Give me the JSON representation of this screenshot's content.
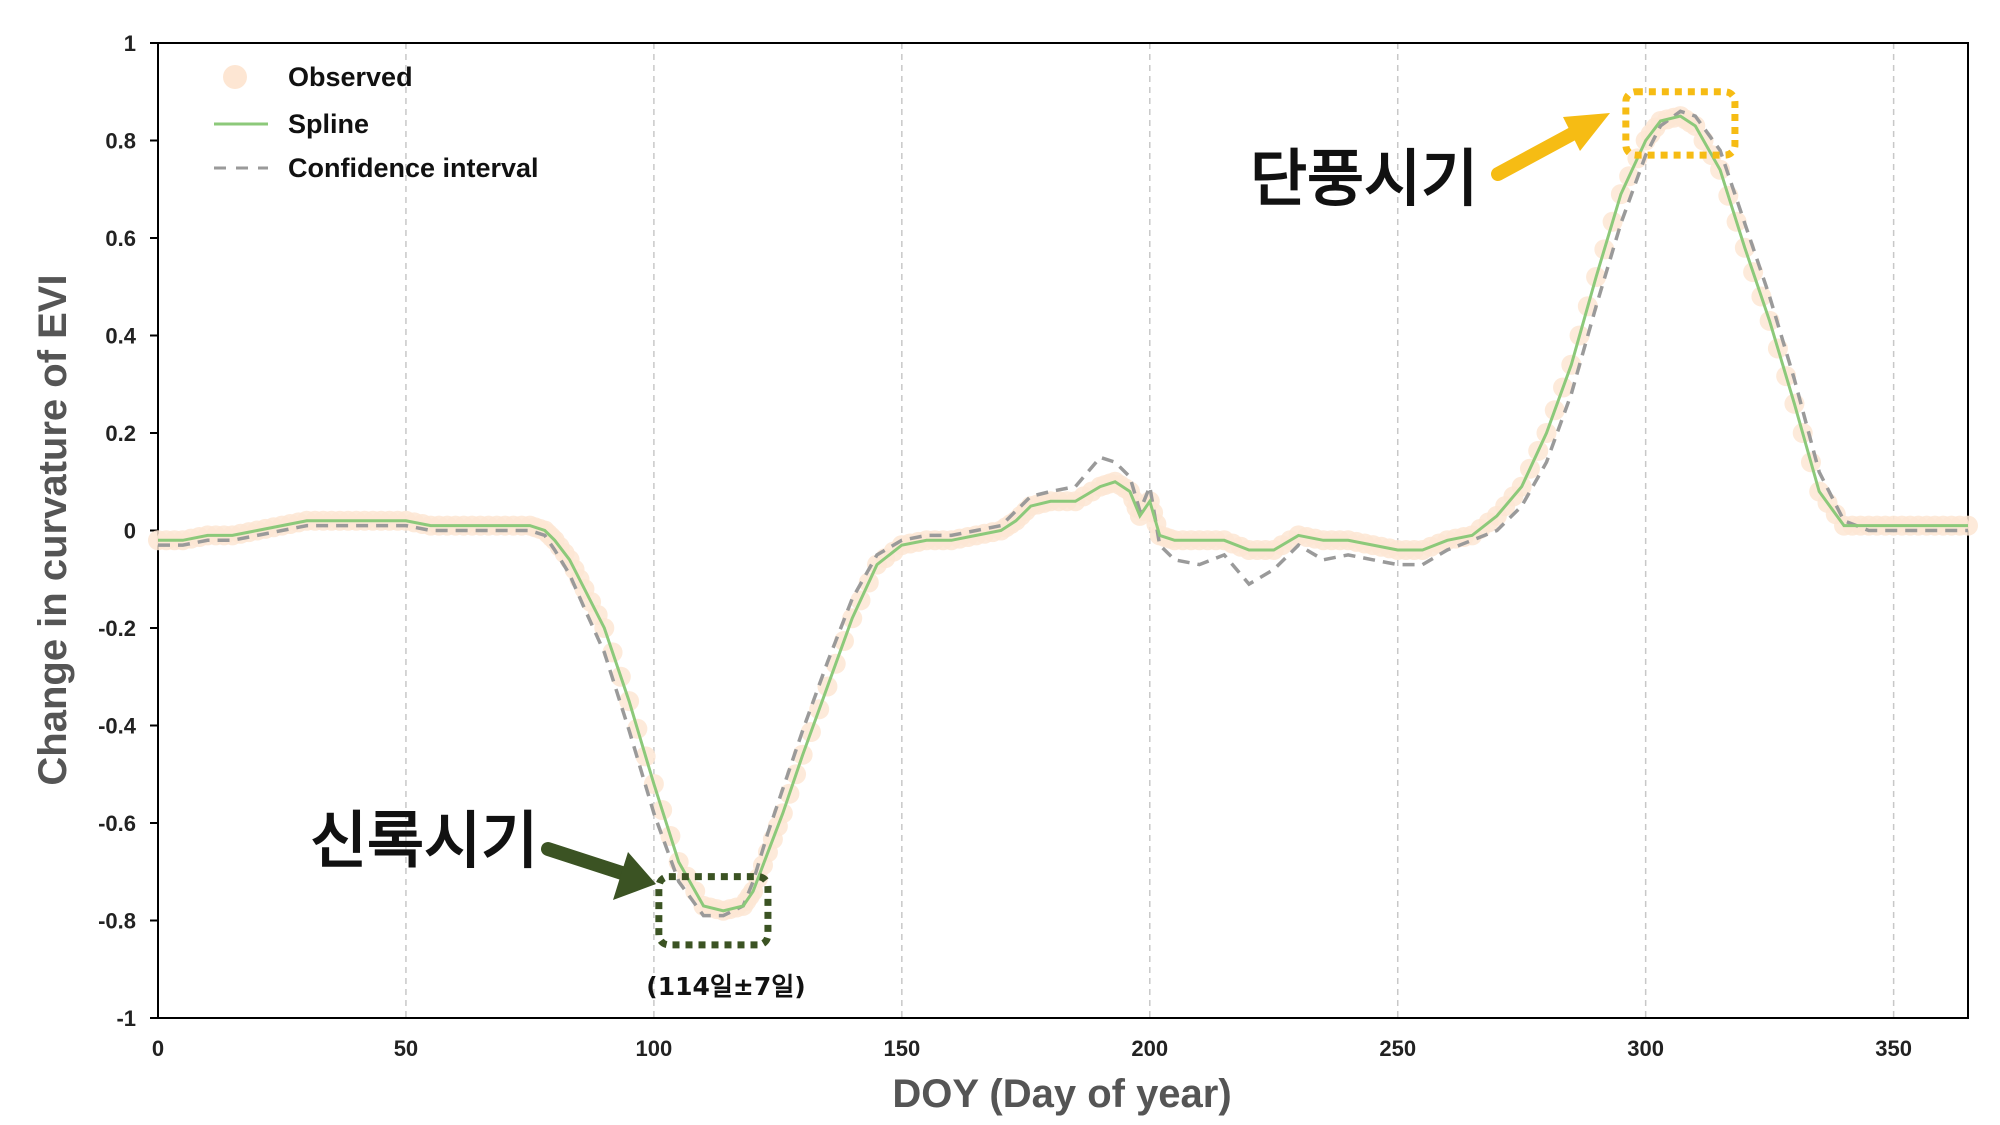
{
  "chart_data": {
    "type": "line",
    "xlabel": "DOY (Day of year)",
    "ylabel": "Change in curvature  of EVI",
    "xlim": [
      0,
      365
    ],
    "ylim": [
      -1,
      1
    ],
    "xticks": [
      0,
      50,
      100,
      150,
      200,
      250,
      300,
      350
    ],
    "yticks": [
      1,
      0.8,
      0.6,
      0.4,
      0.2,
      0,
      -0.2,
      -0.4,
      -0.6,
      -0.8,
      -1
    ],
    "ytick_labels": [
      "1",
      "0.8",
      "0.6",
      "0.4",
      "0.2",
      "0",
      "-0.2",
      "-0.4",
      "-0.6",
      "-0.8",
      "-1"
    ],
    "grid": "vertical dashed",
    "legend_position": "top-left",
    "legend": [
      "Observed",
      "Spline",
      "Confidence interval"
    ],
    "series": [
      {
        "name": "Spline",
        "color": "#8cc97a",
        "x": [
          0,
          5,
          10,
          15,
          20,
          25,
          30,
          35,
          40,
          45,
          50,
          55,
          60,
          65,
          70,
          75,
          78,
          80,
          83,
          86,
          90,
          95,
          100,
          105,
          110,
          114,
          118,
          120,
          123,
          126,
          130,
          135,
          140,
          145,
          150,
          155,
          160,
          165,
          170,
          173,
          176,
          180,
          185,
          190,
          193,
          196,
          198,
          200,
          202,
          205,
          210,
          215,
          220,
          225,
          230,
          235,
          240,
          245,
          250,
          255,
          260,
          265,
          270,
          275,
          280,
          285,
          290,
          295,
          300,
          303,
          307,
          310,
          315,
          320,
          325,
          330,
          335,
          340,
          345,
          350,
          355,
          360,
          365
        ],
        "y": [
          -0.02,
          -0.02,
          -0.01,
          -0.01,
          0.0,
          0.01,
          0.02,
          0.02,
          0.02,
          0.02,
          0.02,
          0.01,
          0.01,
          0.01,
          0.01,
          0.01,
          0.0,
          -0.02,
          -0.06,
          -0.12,
          -0.2,
          -0.35,
          -0.52,
          -0.68,
          -0.77,
          -0.78,
          -0.77,
          -0.74,
          -0.66,
          -0.58,
          -0.46,
          -0.32,
          -0.18,
          -0.07,
          -0.03,
          -0.02,
          -0.02,
          -0.01,
          0.0,
          0.02,
          0.05,
          0.06,
          0.06,
          0.09,
          0.1,
          0.08,
          0.03,
          0.06,
          -0.01,
          -0.02,
          -0.02,
          -0.02,
          -0.04,
          -0.04,
          -0.01,
          -0.02,
          -0.02,
          -0.03,
          -0.04,
          -0.04,
          -0.02,
          -0.01,
          0.03,
          0.09,
          0.2,
          0.34,
          0.52,
          0.69,
          0.8,
          0.84,
          0.85,
          0.83,
          0.74,
          0.58,
          0.43,
          0.26,
          0.08,
          0.01,
          0.01,
          0.01,
          0.01,
          0.01,
          0.01
        ]
      },
      {
        "name": "Confidence interval",
        "color": "#9a9a9a",
        "x": [
          0,
          5,
          10,
          15,
          20,
          25,
          30,
          35,
          40,
          45,
          50,
          55,
          60,
          65,
          70,
          75,
          78,
          80,
          83,
          86,
          90,
          95,
          100,
          105,
          110,
          114,
          118,
          120,
          123,
          126,
          130,
          135,
          140,
          145,
          150,
          155,
          160,
          165,
          170,
          173,
          176,
          180,
          185,
          190,
          193,
          196,
          198,
          200,
          202,
          205,
          210,
          215,
          220,
          225,
          230,
          235,
          240,
          245,
          250,
          255,
          260,
          265,
          270,
          275,
          280,
          285,
          290,
          295,
          300,
          303,
          307,
          310,
          315,
          320,
          325,
          330,
          335,
          340,
          345,
          350,
          355,
          360,
          365
        ],
        "y": [
          -0.03,
          -0.03,
          -0.02,
          -0.02,
          -0.01,
          0.0,
          0.01,
          0.01,
          0.01,
          0.01,
          0.01,
          0.0,
          0.0,
          0.0,
          0.0,
          0.0,
          -0.01,
          -0.04,
          -0.09,
          -0.16,
          -0.25,
          -0.41,
          -0.58,
          -0.72,
          -0.79,
          -0.79,
          -0.77,
          -0.72,
          -0.62,
          -0.53,
          -0.41,
          -0.27,
          -0.14,
          -0.05,
          -0.02,
          -0.01,
          -0.01,
          0.0,
          0.01,
          0.04,
          0.07,
          0.08,
          0.09,
          0.15,
          0.14,
          0.11,
          0.04,
          0.09,
          -0.03,
          -0.06,
          -0.07,
          -0.05,
          -0.11,
          -0.08,
          -0.03,
          -0.06,
          -0.05,
          -0.06,
          -0.07,
          -0.07,
          -0.04,
          -0.02,
          0.0,
          0.05,
          0.14,
          0.28,
          0.46,
          0.63,
          0.77,
          0.83,
          0.86,
          0.85,
          0.78,
          0.63,
          0.48,
          0.31,
          0.12,
          0.02,
          0.0,
          0.0,
          0.0,
          0.0,
          0.0
        ]
      },
      {
        "name": "Observed",
        "color": "#fde6d3",
        "x": [
          0,
          5,
          10,
          15,
          20,
          25,
          30,
          35,
          40,
          45,
          50,
          55,
          60,
          65,
          70,
          75,
          78,
          80,
          83,
          86,
          90,
          95,
          100,
          105,
          110,
          114,
          118,
          120,
          123,
          126,
          130,
          135,
          140,
          145,
          150,
          155,
          160,
          165,
          170,
          173,
          176,
          180,
          185,
          190,
          193,
          196,
          198,
          200,
          202,
          205,
          210,
          215,
          220,
          225,
          230,
          235,
          240,
          245,
          250,
          255,
          260,
          265,
          270,
          275,
          280,
          285,
          290,
          295,
          300,
          303,
          307,
          310,
          315,
          320,
          325,
          330,
          335,
          340,
          345,
          350,
          355,
          360,
          365
        ],
        "y": [
          -0.02,
          -0.02,
          -0.01,
          -0.01,
          0.0,
          0.01,
          0.02,
          0.02,
          0.02,
          0.02,
          0.02,
          0.01,
          0.01,
          0.01,
          0.01,
          0.01,
          0.0,
          -0.02,
          -0.06,
          -0.12,
          -0.2,
          -0.35,
          -0.52,
          -0.68,
          -0.77,
          -0.78,
          -0.77,
          -0.74,
          -0.66,
          -0.58,
          -0.46,
          -0.32,
          -0.18,
          -0.07,
          -0.03,
          -0.02,
          -0.02,
          -0.01,
          0.0,
          0.02,
          0.05,
          0.06,
          0.06,
          0.09,
          0.1,
          0.08,
          0.03,
          0.06,
          -0.01,
          -0.02,
          -0.02,
          -0.02,
          -0.04,
          -0.04,
          -0.01,
          -0.02,
          -0.02,
          -0.03,
          -0.04,
          -0.04,
          -0.02,
          -0.01,
          0.03,
          0.09,
          0.2,
          0.34,
          0.52,
          0.69,
          0.8,
          0.84,
          0.85,
          0.83,
          0.74,
          0.58,
          0.43,
          0.26,
          0.08,
          0.01,
          0.01,
          0.01,
          0.01,
          0.01,
          0.01
        ]
      }
    ],
    "annotations": [
      {
        "id": "green-up",
        "text": "신록시기",
        "color": "#3b5323",
        "box_x": [
          101,
          123
        ],
        "box_y": [
          -0.85,
          -0.71
        ]
      },
      {
        "id": "green-up-range",
        "text": "(114일±7일)"
      },
      {
        "id": "autumn",
        "text": "단풍시기",
        "color": "#f6bc14",
        "box_x": [
          296,
          318
        ],
        "box_y": [
          0.77,
          0.9
        ]
      }
    ]
  }
}
